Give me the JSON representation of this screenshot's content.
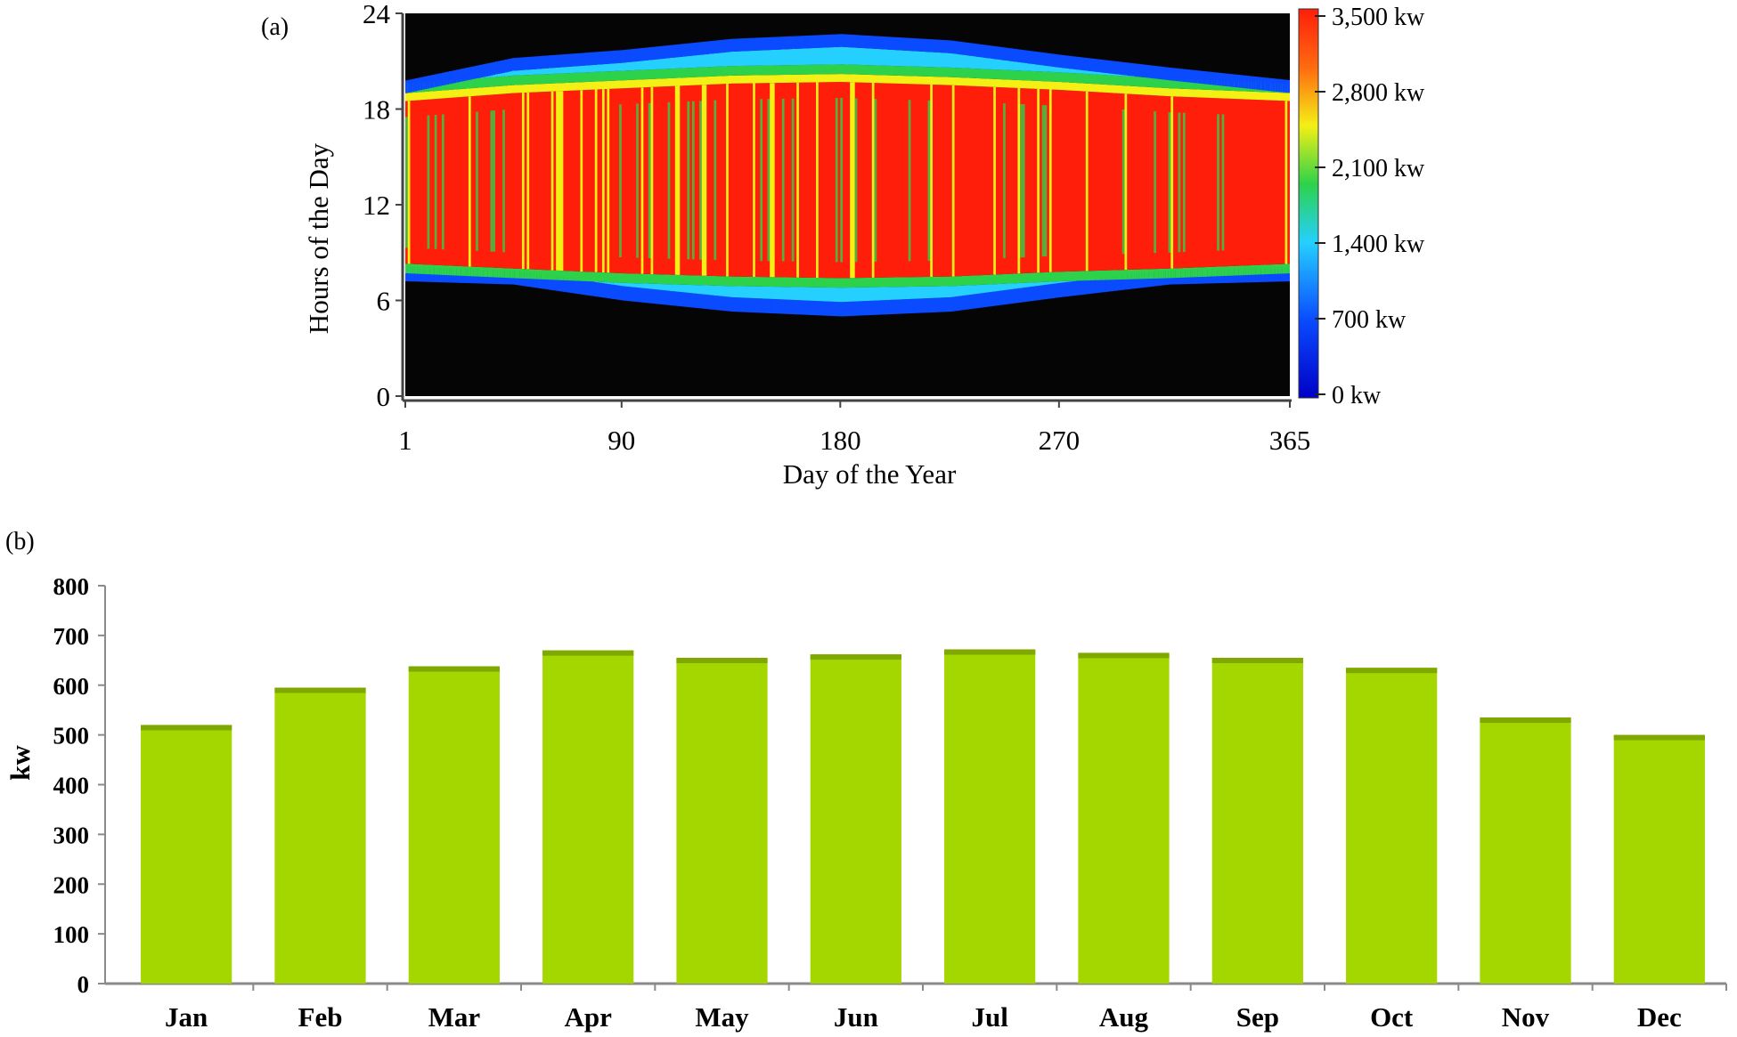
{
  "chart_data": [
    {
      "panel_label": "(a)",
      "type": "heatmap",
      "xlabel": "Day of the Year",
      "ylabel": "Hours of the Day",
      "xlim": [
        1,
        365
      ],
      "ylim": [
        0,
        24
      ],
      "x_ticks": [
        1,
        90,
        180,
        270,
        365
      ],
      "y_ticks": [
        0,
        6,
        12,
        18,
        24
      ],
      "colorbar": {
        "range": [
          0,
          3500
        ],
        "unit": "kw",
        "tick_labels": [
          "0 kw",
          "700 kw",
          "1,400 kw",
          "2,100 kw",
          "2,800 kw",
          "3,500 kw"
        ],
        "tick_values": [
          0,
          700,
          1400,
          2100,
          2800,
          3500
        ],
        "colors": [
          "#0000c8",
          "#0a4bff",
          "#25d0ff",
          "#2dd24a",
          "#f4ef15",
          "#ff1e0a"
        ]
      },
      "profile": {
        "days": [
          1,
          45,
          90,
          135,
          180,
          225,
          270,
          315,
          365
        ],
        "sunrise_hour": [
          7.2,
          7.0,
          6.0,
          5.3,
          5.0,
          5.3,
          6.2,
          7.0,
          7.2
        ],
        "sunset_hour": [
          19.8,
          21.2,
          21.7,
          22.4,
          22.7,
          22.3,
          21.4,
          20.6,
          19.8
        ],
        "full_output_start_hour": [
          8.3,
          8.0,
          7.7,
          7.5,
          7.4,
          7.5,
          7.8,
          8.0,
          8.3
        ],
        "full_output_end_hour": [
          18.5,
          19.0,
          19.3,
          19.6,
          19.7,
          19.5,
          19.2,
          18.8,
          18.5
        ]
      }
    },
    {
      "panel_label": "(b)",
      "type": "bar",
      "categories": [
        "Jan",
        "Feb",
        "Mar",
        "Apr",
        "May",
        "Jun",
        "Jul",
        "Aug",
        "Sep",
        "Oct",
        "Nov",
        "Dec"
      ],
      "values": [
        520,
        595,
        638,
        670,
        655,
        662,
        672,
        665,
        655,
        635,
        535,
        500
      ],
      "ylabel": "kw",
      "xlabel": "",
      "ylim": [
        0,
        800
      ],
      "y_ticks": [
        0,
        100,
        200,
        300,
        400,
        500,
        600,
        700,
        800
      ],
      "bar_color": "#a4d600",
      "bar_top_color": "#7fa800"
    }
  ]
}
